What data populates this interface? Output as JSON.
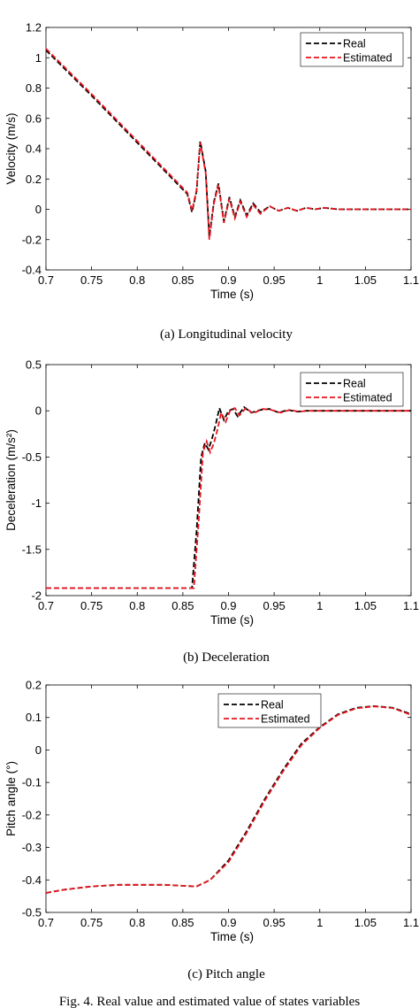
{
  "figure_caption_top": "",
  "figure_caption": "Fig. 4.  Real value and estimated value of states variables",
  "colors": {
    "real": "#000000",
    "estimated": "#e8141c",
    "axis": "#000000"
  },
  "chart_data": [
    {
      "type": "line",
      "subcaption": "(a) Longitudinal velocity",
      "xlabel": "Time (s)",
      "ylabel": "Velocity (m/s)",
      "xlim": [
        0.7,
        1.1
      ],
      "ylim": [
        -0.4,
        1.2
      ],
      "xticks": [
        0.7,
        0.75,
        0.8,
        0.85,
        0.9,
        0.95,
        1,
        1.05,
        1.1
      ],
      "xticklabels": [
        "0.7",
        "0.75",
        "0.8",
        "0.85",
        "0.9",
        "0.95",
        "1",
        "1.05",
        "1.1"
      ],
      "yticks": [
        -0.4,
        -0.2,
        0,
        0.2,
        0.4,
        0.6,
        0.8,
        1,
        1.2
      ],
      "yticklabels": [
        "-0.4",
        "-0.2",
        "0",
        "0.2",
        "0.4",
        "0.6",
        "0.8",
        "1",
        "1.2"
      ],
      "legend_position": "top-right",
      "series": [
        {
          "name": "Real",
          "color": "#000000",
          "dash": "dashed",
          "x": [
            0.7,
            0.75,
            0.8,
            0.855,
            0.86,
            0.865,
            0.869,
            0.875,
            0.879,
            0.884,
            0.889,
            0.895,
            0.901,
            0.907,
            0.913,
            0.92,
            0.927,
            0.935,
            0.945,
            0.955,
            0.965,
            0.975,
            0.985,
            0.995,
            1.005,
            1.02,
            1.035,
            1.05,
            1.07,
            1.09,
            1.1
          ],
          "y": [
            1.05,
            0.75,
            0.44,
            0.1,
            -0.02,
            0.12,
            0.45,
            0.25,
            -0.18,
            0.05,
            0.17,
            -0.08,
            0.08,
            -0.05,
            0.06,
            -0.04,
            0.04,
            -0.02,
            0.02,
            -0.01,
            0.01,
            -0.01,
            0.01,
            0.0,
            0.01,
            0.0,
            0.0,
            0.0,
            0.0,
            0.0,
            0.0
          ]
        },
        {
          "name": "Estimated",
          "color": "#e8141c",
          "dash": "dashed",
          "x": [
            0.7,
            0.75,
            0.8,
            0.855,
            0.86,
            0.865,
            0.869,
            0.875,
            0.879,
            0.884,
            0.889,
            0.895,
            0.901,
            0.907,
            0.913,
            0.92,
            0.927,
            0.935,
            0.945,
            0.955,
            0.965,
            0.975,
            0.985,
            0.995,
            1.005,
            1.02,
            1.035,
            1.05,
            1.07,
            1.09,
            1.1
          ],
          "y": [
            1.06,
            0.76,
            0.45,
            0.11,
            -0.01,
            0.13,
            0.44,
            0.24,
            -0.2,
            0.04,
            0.16,
            -0.09,
            0.07,
            -0.06,
            0.05,
            -0.05,
            0.03,
            -0.03,
            0.02,
            -0.01,
            0.01,
            -0.01,
            0.01,
            0.0,
            0.01,
            0.0,
            0.0,
            0.0,
            0.0,
            0.0,
            0.0
          ]
        }
      ]
    },
    {
      "type": "line",
      "subcaption": "(b) Deceleration",
      "xlabel": "Time (s)",
      "ylabel": "Deceleration (m/s²)",
      "xlim": [
        0.7,
        1.1
      ],
      "ylim": [
        -2,
        0.5
      ],
      "xticks": [
        0.7,
        0.75,
        0.8,
        0.85,
        0.9,
        0.95,
        1,
        1.05,
        1.1
      ],
      "xticklabels": [
        "0.7",
        "0.75",
        "0.8",
        "0.85",
        "0.9",
        "0.95",
        "1",
        "1.05",
        "1.1"
      ],
      "yticks": [
        -2,
        -1.5,
        -1,
        -0.5,
        0,
        0.5
      ],
      "yticklabels": [
        "-2",
        "-1.5",
        "-1",
        "-0.5",
        "0",
        "0.5"
      ],
      "legend_position": "top-right",
      "series": [
        {
          "name": "Real",
          "color": "#000000",
          "dash": "dashed",
          "x": [
            0.7,
            0.86,
            0.865,
            0.87,
            0.874,
            0.878,
            0.882,
            0.886,
            0.89,
            0.895,
            0.9,
            0.905,
            0.91,
            0.917,
            0.925,
            0.935,
            0.945,
            0.955,
            0.965,
            0.975,
            0.985,
            1.0,
            1.02,
            1.05,
            1.1
          ],
          "y": [
            -1.92,
            -1.92,
            -1.3,
            -0.5,
            -0.35,
            -0.42,
            -0.3,
            -0.15,
            0.03,
            -0.1,
            0.0,
            0.02,
            -0.06,
            0.04,
            -0.02,
            0.01,
            0.02,
            -0.02,
            0.01,
            -0.01,
            0.0,
            0.0,
            0.0,
            0.0,
            0.0
          ]
        },
        {
          "name": "Estimated",
          "color": "#e8141c",
          "dash": "dashed",
          "x": [
            0.7,
            0.862,
            0.867,
            0.872,
            0.876,
            0.88,
            0.884,
            0.888,
            0.892,
            0.897,
            0.902,
            0.907,
            0.912,
            0.919,
            0.927,
            0.937,
            0.947,
            0.957,
            0.967,
            0.977,
            0.987,
            1.0,
            1.02,
            1.05,
            1.1
          ],
          "y": [
            -1.92,
            -1.92,
            -1.25,
            -0.45,
            -0.33,
            -0.45,
            -0.35,
            -0.2,
            -0.02,
            -0.12,
            0.01,
            0.03,
            -0.05,
            0.03,
            -0.03,
            0.02,
            0.01,
            -0.02,
            0.01,
            -0.01,
            0.0,
            0.0,
            0.0,
            0.0,
            0.0
          ]
        }
      ]
    },
    {
      "type": "line",
      "subcaption": "(c) Pitch angle",
      "xlabel": "Time (s)",
      "ylabel": "Pitch angle (°)",
      "xlim": [
        0.7,
        1.1
      ],
      "ylim": [
        -0.5,
        0.2
      ],
      "xticks": [
        0.7,
        0.75,
        0.8,
        0.85,
        0.9,
        0.95,
        1,
        1.05,
        1.1
      ],
      "xticklabels": [
        "0.7",
        "0.75",
        "0.8",
        "0.85",
        "0.9",
        "0.95",
        "1",
        "1.05",
        "1.1"
      ],
      "yticks": [
        -0.5,
        -0.4,
        -0.3,
        -0.2,
        -0.1,
        0,
        0.1,
        0.2
      ],
      "yticklabels": [
        "-0.5",
        "-0.4",
        "-0.3",
        "-0.2",
        "-0.1",
        "0",
        "0.1",
        "0.2"
      ],
      "legend_position": "top-center-right",
      "series": [
        {
          "name": "Real",
          "color": "#000000",
          "dash": "dashed",
          "x": [
            0.7,
            0.72,
            0.75,
            0.78,
            0.8,
            0.83,
            0.85,
            0.865,
            0.88,
            0.9,
            0.92,
            0.94,
            0.96,
            0.98,
            1.0,
            1.02,
            1.04,
            1.06,
            1.08,
            1.1
          ],
          "y": [
            -0.44,
            -0.43,
            -0.42,
            -0.415,
            -0.415,
            -0.415,
            -0.418,
            -0.42,
            -0.4,
            -0.34,
            -0.25,
            -0.15,
            -0.06,
            0.02,
            0.07,
            0.11,
            0.13,
            0.135,
            0.13,
            0.11
          ]
        },
        {
          "name": "Estimated",
          "color": "#e8141c",
          "dash": "dashed",
          "x": [
            0.7,
            0.72,
            0.75,
            0.78,
            0.8,
            0.83,
            0.85,
            0.865,
            0.88,
            0.9,
            0.92,
            0.94,
            0.96,
            0.98,
            1.0,
            1.02,
            1.04,
            1.06,
            1.08,
            1.1
          ],
          "y": [
            -0.44,
            -0.43,
            -0.42,
            -0.415,
            -0.415,
            -0.415,
            -0.418,
            -0.42,
            -0.4,
            -0.345,
            -0.255,
            -0.155,
            -0.065,
            0.015,
            0.068,
            0.108,
            0.128,
            0.134,
            0.129,
            0.108
          ]
        }
      ]
    }
  ]
}
